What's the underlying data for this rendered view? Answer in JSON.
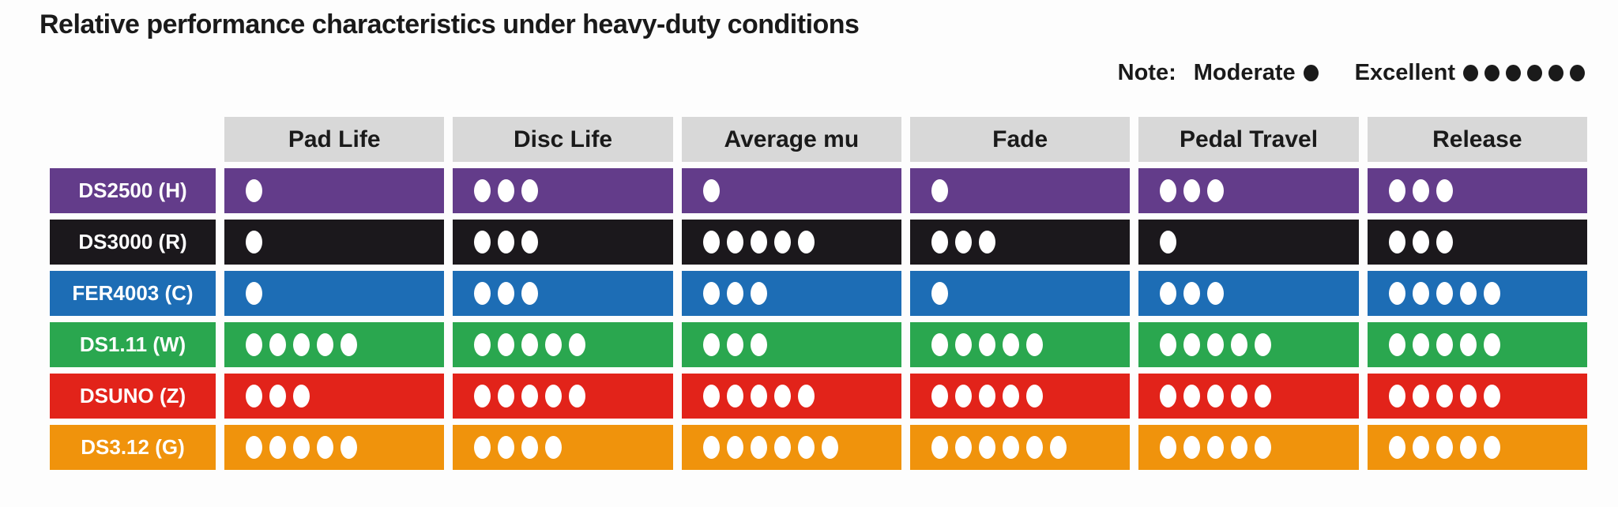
{
  "chart_data": {
    "type": "table",
    "title": "Relative performance characteristics under heavy-duty conditions",
    "note_label": "Note:",
    "scale": {
      "moderate_label": "Moderate",
      "moderate_dots": 1,
      "excellent_label": "Excellent",
      "excellent_dots": 6
    },
    "columns": [
      "Pad Life",
      "Disc Life",
      "Average mu",
      "Fade",
      "Pedal Travel",
      "Release"
    ],
    "rows": [
      {
        "label": "DS2500 (H)",
        "color": "#633c8a",
        "values": [
          1,
          3,
          1,
          1,
          3,
          3
        ]
      },
      {
        "label": "DS3000 (R)",
        "color": "#1b181c",
        "values": [
          1,
          3,
          5,
          3,
          1,
          3
        ]
      },
      {
        "label": "FER4003 (C)",
        "color": "#1d6db5",
        "values": [
          1,
          3,
          3,
          1,
          3,
          5
        ]
      },
      {
        "label": "DS1.11 (W)",
        "color": "#2aa74f",
        "values": [
          5,
          5,
          3,
          5,
          5,
          5
        ]
      },
      {
        "label": "DSUNO (Z)",
        "color": "#e2231a",
        "values": [
          3,
          5,
          5,
          5,
          5,
          5
        ]
      },
      {
        "label": "DS3.12 (G)",
        "color": "#f0930c",
        "values": [
          5,
          4,
          6,
          6,
          5,
          5
        ]
      }
    ],
    "colors": {
      "header_bg": "#d8d8d8",
      "dot_light": "#ffffff",
      "dot_dark": "#1a1a1a",
      "background": "#fdfdfd"
    }
  }
}
